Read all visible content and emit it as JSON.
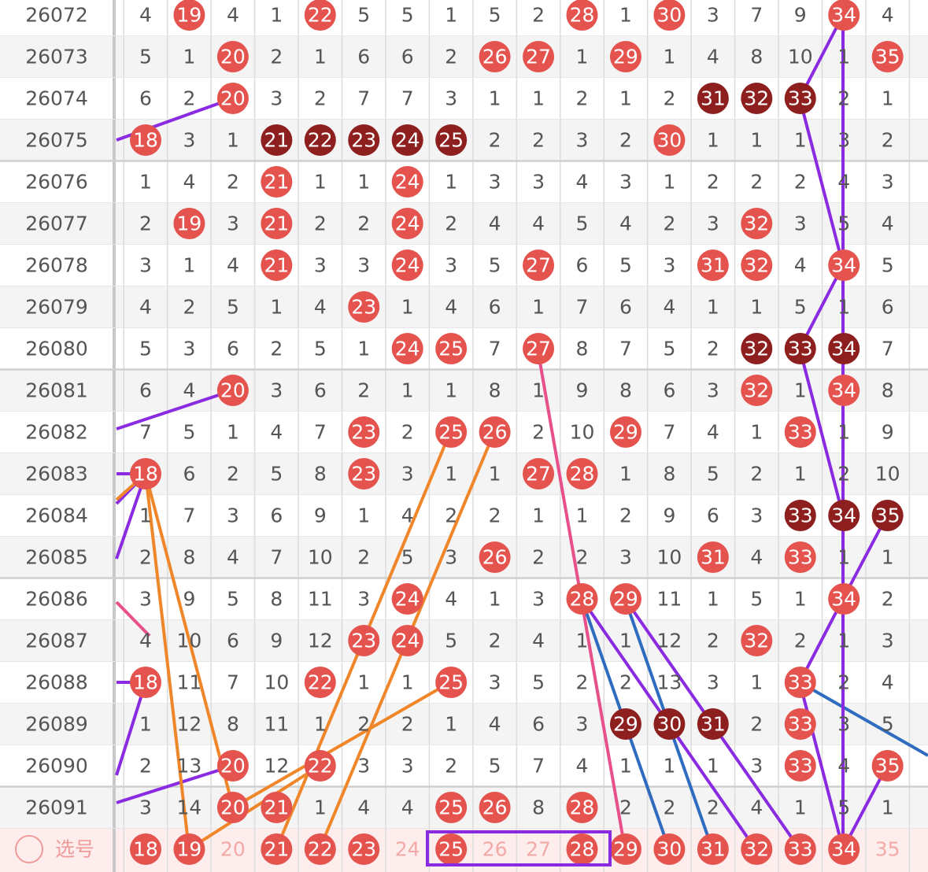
{
  "rows": [
    {
      "period": "26072",
      "cells": [
        4,
        19,
        4,
        1,
        22,
        5,
        5,
        1,
        5,
        2,
        28,
        1,
        30,
        3,
        7,
        9,
        34,
        4
      ],
      "hit": [
        1,
        4,
        10,
        12,
        16
      ],
      "dark": []
    },
    {
      "period": "26073",
      "cells": [
        5,
        1,
        20,
        2,
        1,
        6,
        6,
        2,
        26,
        27,
        1,
        29,
        1,
        4,
        8,
        10,
        1,
        35
      ],
      "hit": [
        2,
        8,
        9,
        11,
        17
      ],
      "dark": []
    },
    {
      "period": "26074",
      "cells": [
        6,
        2,
        20,
        3,
        2,
        7,
        7,
        3,
        1,
        1,
        2,
        1,
        2,
        31,
        32,
        33,
        2,
        1
      ],
      "hit": [
        2
      ],
      "dark": [
        13,
        14,
        15
      ]
    },
    {
      "period": "26075",
      "cells": [
        18,
        3,
        1,
        21,
        22,
        23,
        24,
        25,
        2,
        2,
        3,
        2,
        30,
        1,
        1,
        1,
        3,
        2
      ],
      "hit": [
        0,
        12
      ],
      "dark": [
        3,
        4,
        5,
        6,
        7
      ]
    },
    {
      "period": "26076",
      "cells": [
        1,
        4,
        2,
        21,
        1,
        1,
        24,
        1,
        3,
        3,
        4,
        3,
        1,
        2,
        2,
        2,
        4,
        3
      ],
      "hit": [
        3,
        6
      ],
      "dark": []
    },
    {
      "period": "26077",
      "cells": [
        2,
        19,
        3,
        21,
        2,
        2,
        24,
        2,
        4,
        4,
        5,
        4,
        2,
        3,
        32,
        3,
        5,
        4
      ],
      "hit": [
        1,
        3,
        6,
        14
      ],
      "dark": []
    },
    {
      "period": "26078",
      "cells": [
        3,
        1,
        4,
        21,
        3,
        3,
        24,
        3,
        5,
        27,
        6,
        5,
        3,
        31,
        32,
        4,
        34,
        5
      ],
      "hit": [
        3,
        6,
        9,
        13,
        14,
        16
      ],
      "dark": []
    },
    {
      "period": "26079",
      "cells": [
        4,
        2,
        5,
        1,
        4,
        23,
        1,
        4,
        6,
        1,
        7,
        6,
        4,
        1,
        1,
        5,
        1,
        6
      ],
      "hit": [
        5
      ],
      "dark": []
    },
    {
      "period": "26080",
      "cells": [
        5,
        3,
        6,
        2,
        5,
        1,
        24,
        25,
        7,
        27,
        8,
        7,
        5,
        2,
        32,
        33,
        34,
        7
      ],
      "hit": [
        6,
        7,
        9
      ],
      "dark": [
        14,
        15,
        16
      ]
    },
    {
      "period": "26081",
      "cells": [
        6,
        4,
        20,
        3,
        6,
        2,
        1,
        1,
        8,
        1,
        9,
        8,
        6,
        3,
        32,
        1,
        34,
        8
      ],
      "hit": [
        2,
        14,
        16
      ],
      "dark": []
    },
    {
      "period": "26082",
      "cells": [
        7,
        5,
        1,
        4,
        7,
        23,
        2,
        25,
        26,
        2,
        10,
        29,
        7,
        4,
        1,
        33,
        1,
        9
      ],
      "hit": [
        5,
        7,
        8,
        11,
        15
      ],
      "dark": []
    },
    {
      "period": "26083",
      "cells": [
        18,
        6,
        2,
        5,
        8,
        23,
        3,
        1,
        1,
        27,
        28,
        1,
        8,
        5,
        2,
        1,
        2,
        10
      ],
      "hit": [
        0,
        5,
        9,
        10
      ],
      "dark": []
    },
    {
      "period": "26084",
      "cells": [
        1,
        7,
        3,
        6,
        9,
        1,
        4,
        2,
        2,
        1,
        1,
        2,
        9,
        6,
        3,
        33,
        34,
        35
      ],
      "hit": [],
      "dark": [
        15,
        16,
        17
      ]
    },
    {
      "period": "26085",
      "cells": [
        2,
        8,
        4,
        7,
        10,
        2,
        5,
        3,
        26,
        2,
        2,
        3,
        10,
        31,
        4,
        33,
        1,
        1
      ],
      "hit": [
        8,
        13,
        15
      ],
      "dark": []
    },
    {
      "period": "26086",
      "cells": [
        3,
        9,
        5,
        8,
        11,
        3,
        24,
        4,
        1,
        3,
        28,
        29,
        11,
        1,
        5,
        1,
        34,
        2
      ],
      "hit": [
        6,
        10,
        11,
        16
      ],
      "dark": []
    },
    {
      "period": "26087",
      "cells": [
        4,
        10,
        6,
        9,
        12,
        23,
        24,
        5,
        2,
        4,
        1,
        1,
        12,
        2,
        32,
        2,
        1,
        3
      ],
      "hit": [
        5,
        6,
        14
      ],
      "dark": []
    },
    {
      "period": "26088",
      "cells": [
        18,
        11,
        7,
        10,
        22,
        1,
        1,
        25,
        3,
        5,
        2,
        2,
        13,
        3,
        1,
        33,
        2,
        4
      ],
      "hit": [
        0,
        4,
        7,
        15
      ],
      "dark": []
    },
    {
      "period": "26089",
      "cells": [
        1,
        12,
        8,
        11,
        1,
        2,
        2,
        1,
        4,
        6,
        3,
        29,
        30,
        31,
        2,
        33,
        3,
        5
      ],
      "hit": [
        15
      ],
      "dark": [
        11,
        12,
        13
      ]
    },
    {
      "period": "26090",
      "cells": [
        2,
        13,
        20,
        12,
        22,
        3,
        3,
        2,
        5,
        7,
        4,
        1,
        1,
        1,
        3,
        33,
        4,
        35
      ],
      "hit": [
        2,
        4,
        15,
        17
      ],
      "dark": []
    },
    {
      "period": "26091",
      "cells": [
        3,
        14,
        20,
        21,
        1,
        4,
        4,
        25,
        26,
        8,
        28,
        2,
        2,
        2,
        4,
        1,
        5,
        1
      ],
      "hit": [
        2,
        3,
        7,
        8,
        10
      ],
      "dark": []
    }
  ],
  "picker": {
    "label": "选号",
    "numbers": [
      18,
      19,
      20,
      21,
      22,
      23,
      24,
      25,
      26,
      27,
      28,
      29,
      30,
      31,
      32,
      33,
      34,
      35
    ],
    "selected": [
      0,
      1,
      3,
      4,
      5,
      7,
      10,
      11,
      12,
      13,
      14,
      15,
      16
    ]
  }
}
